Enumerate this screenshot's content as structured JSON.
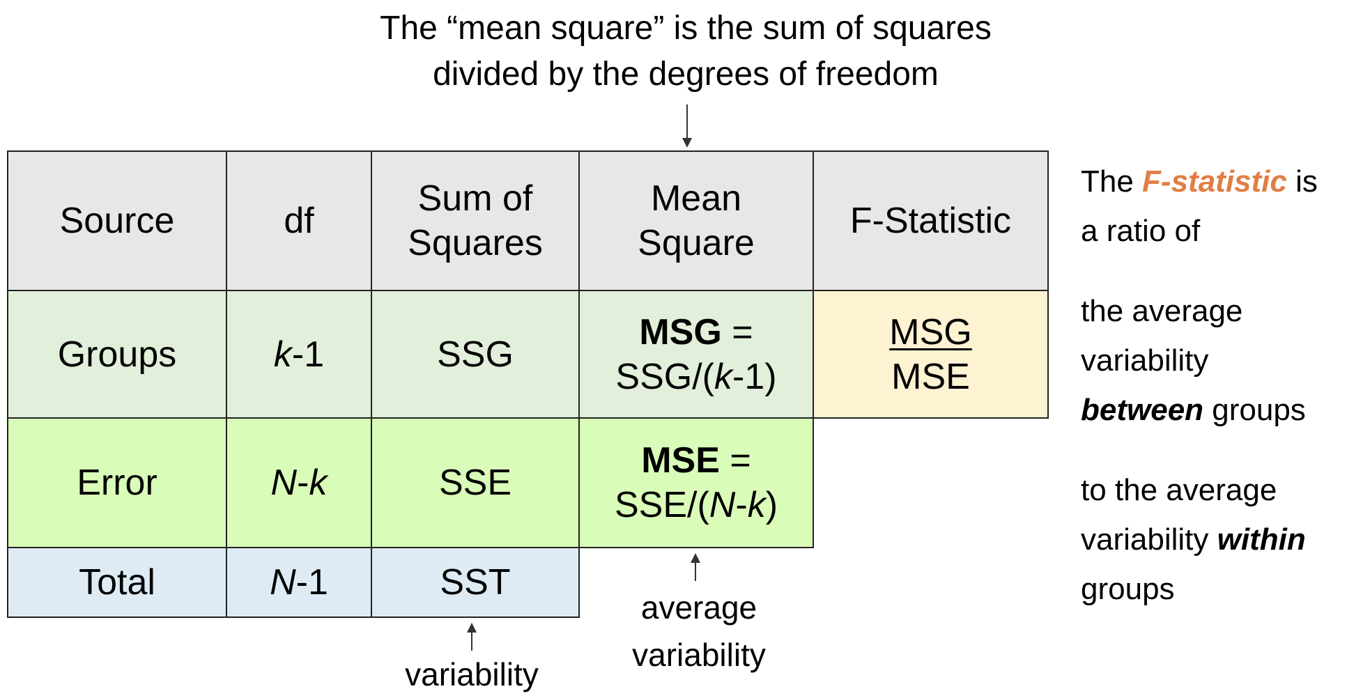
{
  "top_note": {
    "line1": "The “mean square” is the sum of squares",
    "line2": "divided by the degrees of freedom"
  },
  "table": {
    "headers": [
      "Source",
      "df",
      "Sum of",
      "Squares",
      "Mean",
      "Square",
      "F-Statistic"
    ],
    "groups": {
      "source": "Groups",
      "df_var": "k",
      "df_rest": "-1",
      "ss": "SSG",
      "ms_bold": "MSG",
      "ms_eq": " =",
      "ms_formula_pre": "SSG/(",
      "ms_formula_var": "k",
      "ms_formula_post": "-1)",
      "f_num": "MSG",
      "f_den": "MSE"
    },
    "error": {
      "source": "Error",
      "df_var1": "N",
      "df_dash": "-",
      "df_var2": "k",
      "ss": "SSE",
      "ms_bold": "MSE",
      "ms_eq": " =",
      "ms_formula_pre": "SSE/(",
      "ms_formula_var1": "N",
      "ms_formula_dash": "-",
      "ms_formula_var2": "k",
      "ms_formula_post": ")"
    },
    "total": {
      "source": "Total",
      "df_var": "N",
      "df_rest": "-1",
      "ss": "SST"
    },
    "colors": {
      "header": "#e7e7e7",
      "groups": "#e2efda",
      "error": "#dafcb9",
      "total": "#deebf4",
      "f_cell": "#fdf2d2"
    }
  },
  "labels": {
    "avg1": "average",
    "avg2": "variability",
    "var": "variability"
  },
  "side": {
    "l1_pre": "The ",
    "l1_em": "F-statistic",
    "l1_post": " is",
    "l2": "a ratio of",
    "l3": "the average",
    "l4": "variability",
    "l5_em": "between",
    "l5_post": " groups",
    "l6": "to the average",
    "l7_pre": "variability ",
    "l7_em": "within",
    "l8": "groups",
    "accent": "#e07f45"
  }
}
